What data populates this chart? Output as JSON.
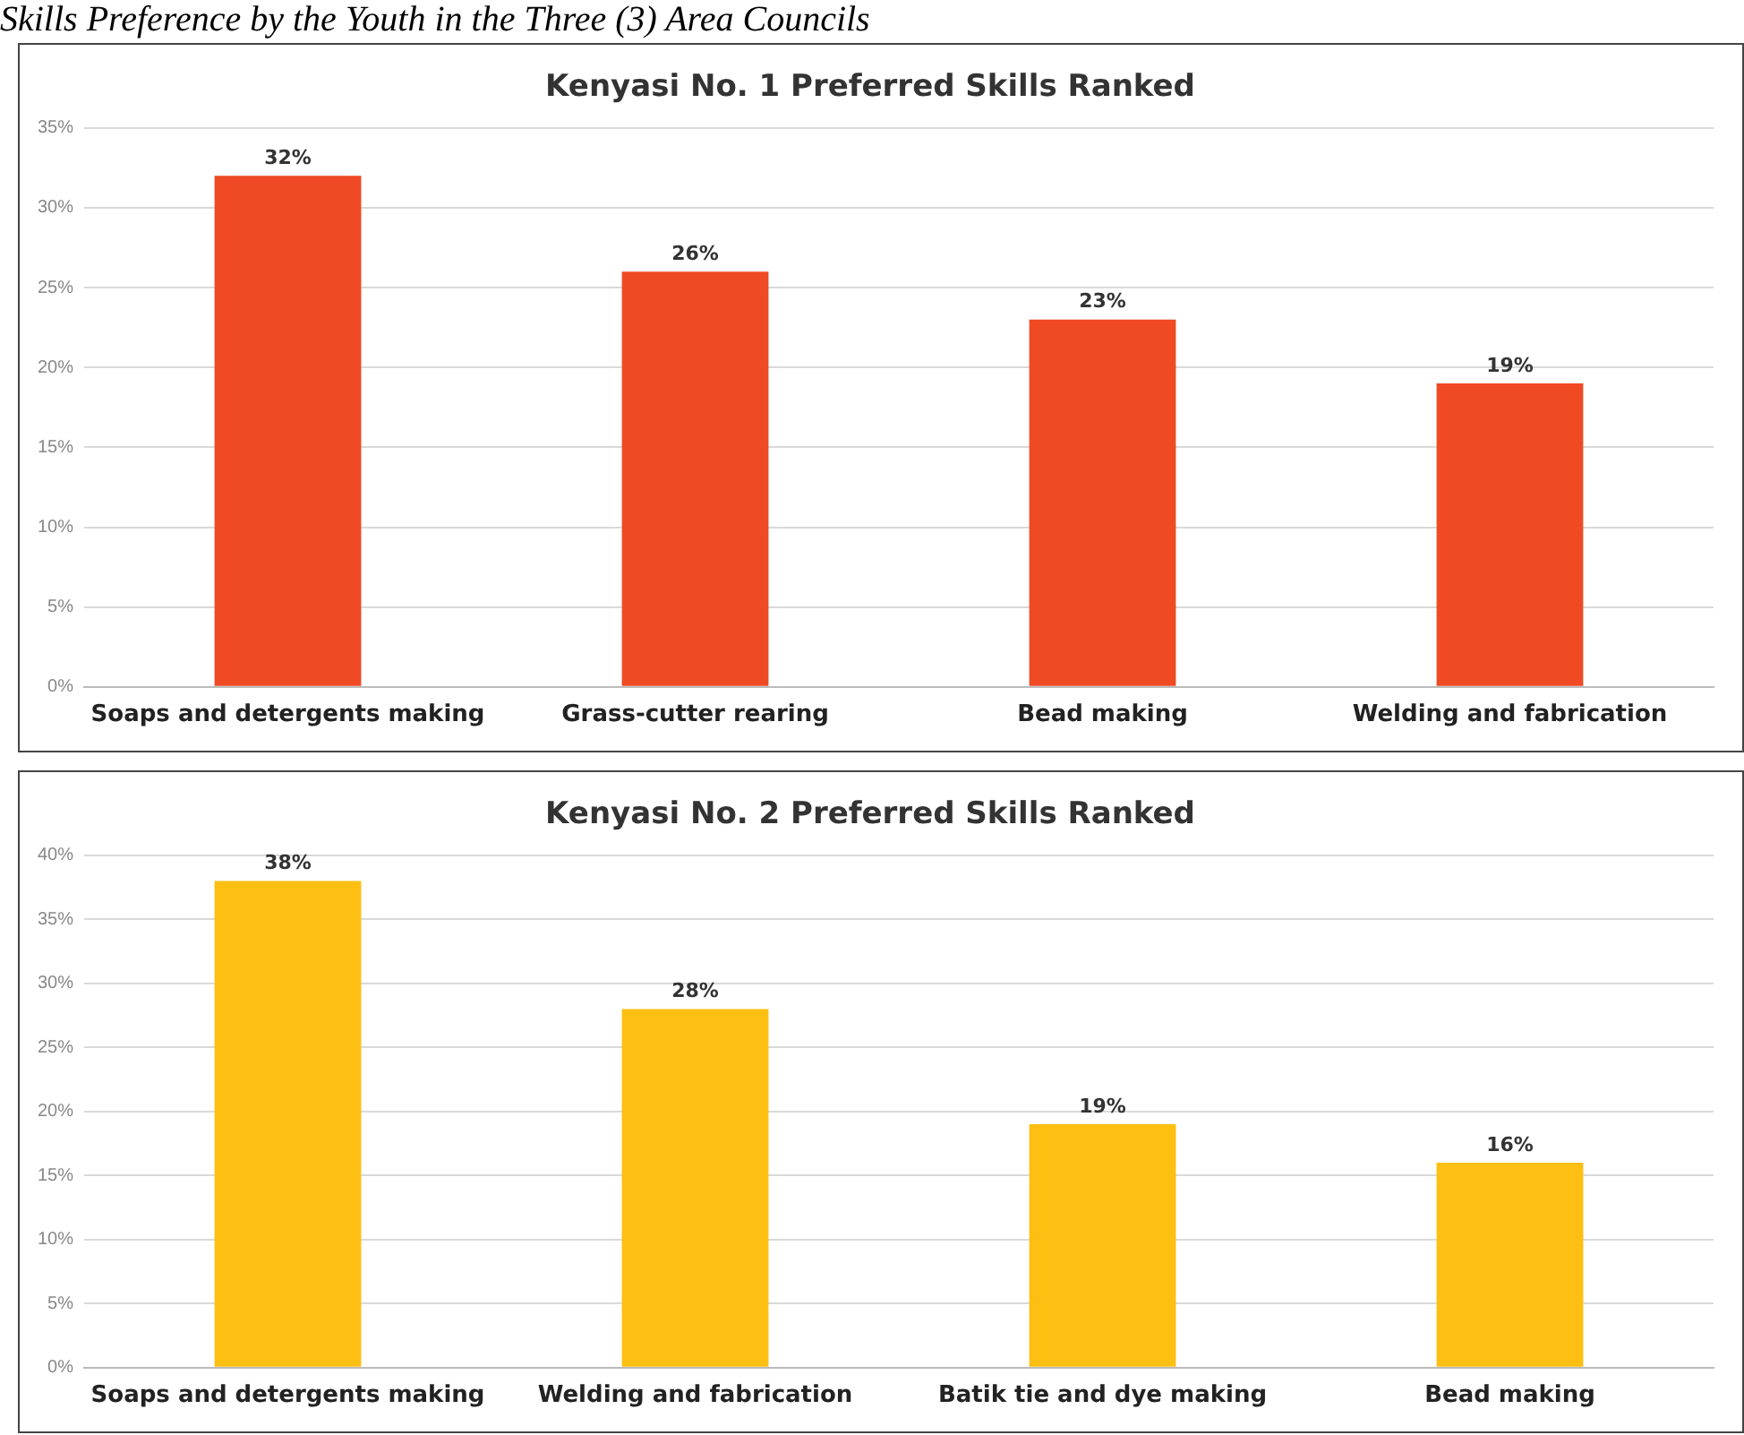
{
  "chart_data": [
    {
      "type": "bar",
      "title": "Kenyasi No. 1 Preferred Skills Ranked",
      "annotations": [
        "Skills Preference by the Youth in the Three (3) Area Councils"
      ],
      "categories": [
        "Soaps and detergents making",
        "Grass-cutter rearing",
        "Bead making",
        "Welding and fabrication"
      ],
      "values": [
        32,
        26,
        23,
        19
      ],
      "value_labels": [
        "32%",
        "26%",
        "23%",
        "19%"
      ],
      "color": "#f04a24",
      "ylim": [
        0,
        35
      ],
      "yticks": [
        {
          "value": 0,
          "label": "0%"
        },
        {
          "value": 5,
          "label": "5%"
        },
        {
          "value": 10,
          "label": "10%"
        },
        {
          "value": 15,
          "label": "15%"
        },
        {
          "value": 20,
          "label": "20%"
        },
        {
          "value": 25,
          "label": "25%"
        },
        {
          "value": 30,
          "label": "30%"
        },
        {
          "value": 35,
          "label": "35%"
        }
      ],
      "grid": "y",
      "legend": false
    },
    {
      "type": "bar",
      "title": "Kenyasi No. 2 Preferred Skills Ranked",
      "categories": [
        "Soaps and detergents making",
        "Welding and fabrication",
        "Batik tie and dye making",
        "Bead making"
      ],
      "values": [
        38,
        28,
        19,
        16
      ],
      "value_labels": [
        "38%",
        "28%",
        "19%",
        "16%"
      ],
      "color": "#fdbf12",
      "ylim": [
        0,
        40
      ],
      "yticks": [
        {
          "value": 0,
          "label": "0%"
        },
        {
          "value": 5,
          "label": "5%"
        },
        {
          "value": 10,
          "label": "10%"
        },
        {
          "value": 15,
          "label": "15%"
        },
        {
          "value": 20,
          "label": "20%"
        },
        {
          "value": 25,
          "label": "25%"
        },
        {
          "value": 30,
          "label": "30%"
        },
        {
          "value": 35,
          "label": "35%"
        },
        {
          "value": 40,
          "label": "40%"
        }
      ],
      "grid": "y",
      "legend": false
    }
  ]
}
